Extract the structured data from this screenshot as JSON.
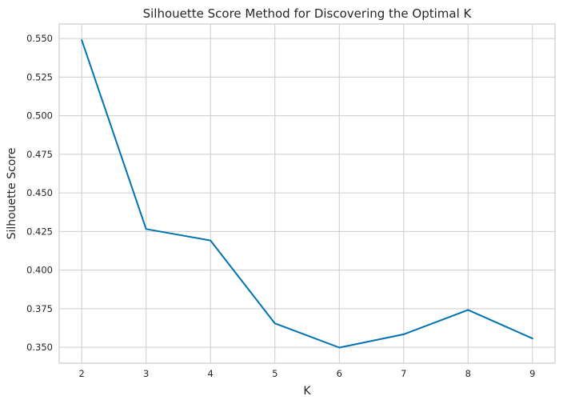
{
  "chart_data": {
    "type": "line",
    "title": "Silhouette Score Method for Discovering the Optimal K",
    "xlabel": "K",
    "ylabel": "Silhouette Score",
    "xlim": [
      1.65,
      9.35
    ],
    "ylim": [
      0.3397,
      0.5594
    ],
    "x_ticks": [
      2,
      3,
      4,
      5,
      6,
      7,
      8,
      9
    ],
    "y_ticks": [
      0.35,
      0.375,
      0.4,
      0.425,
      0.45,
      0.475,
      0.5,
      0.525,
      0.55
    ],
    "y_tick_labels": [
      "0.350",
      "0.375",
      "0.400",
      "0.425",
      "0.450",
      "0.475",
      "0.500",
      "0.525",
      "0.550"
    ],
    "grid": true,
    "series": [
      {
        "color": "#0072b2",
        "x": [
          2,
          3,
          4,
          5,
          6,
          7,
          8,
          9
        ],
        "y": [
          0.549,
          0.4266,
          0.4192,
          0.3655,
          0.3498,
          0.3584,
          0.3742,
          0.3557
        ]
      }
    ]
  }
}
